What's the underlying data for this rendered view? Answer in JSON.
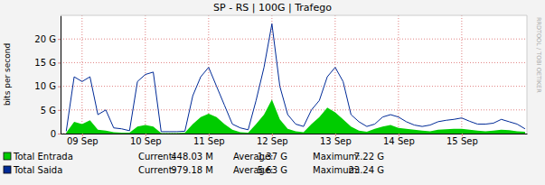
{
  "chart_data": {
    "type": "line",
    "title": "SP - RS | 100G | Trafego",
    "y_label": "bits per second",
    "annotations": [
      "RRDTOOL / TOBI OETIKER"
    ],
    "x": [
      8.75,
      8.875,
      9,
      9.125,
      9.25,
      9.375,
      9.5,
      9.625,
      9.75,
      9.875,
      10,
      10.125,
      10.25,
      10.375,
      10.5,
      10.625,
      10.75,
      10.875,
      11,
      11.125,
      11.25,
      11.375,
      11.5,
      11.625,
      11.75,
      11.875,
      12,
      12.125,
      12.25,
      12.375,
      12.5,
      12.625,
      12.75,
      12.875,
      13,
      13.125,
      13.25,
      13.375,
      13.5,
      13.625,
      13.75,
      13.875,
      14,
      14.125,
      14.25,
      14.375,
      14.5,
      14.625,
      14.75,
      14.875,
      15,
      15.125,
      15.25,
      15.375,
      15.5,
      15.625,
      15.75,
      15.875,
      16
    ],
    "xlim": [
      8.66,
      16.03
    ],
    "xticks": [
      {
        "value": 9,
        "label": "09 Sep"
      },
      {
        "value": 10,
        "label": "10 Sep"
      },
      {
        "value": 11,
        "label": "11 Sep"
      },
      {
        "value": 12,
        "label": "12 Sep"
      },
      {
        "value": 13,
        "label": "13 Sep"
      },
      {
        "value": 14,
        "label": "14 Sep"
      },
      {
        "value": 15,
        "label": "15 Sep"
      }
    ],
    "ylim": [
      0,
      25
    ],
    "yticks": [
      0,
      {
        "value": 5,
        "label": "5 G"
      },
      {
        "value": 10,
        "label": "10 G"
      },
      {
        "value": 15,
        "label": "15 G"
      },
      {
        "value": 20,
        "label": "20 G"
      }
    ],
    "grid": true,
    "legend": "bottom",
    "stat_labels": [
      "Current:",
      "Average:",
      "Maximum:"
    ],
    "series": [
      {
        "name": "Total Entrada",
        "type": "area",
        "color": "#00cc00",
        "current": "448.03 M",
        "average": "1.37 G",
        "maximum": "7.22 G",
        "values": [
          0.2,
          2.5,
          2,
          2.8,
          0.8,
          0.6,
          0.3,
          0.2,
          0.2,
          1.5,
          1.8,
          1.5,
          0.1,
          0.1,
          0.1,
          0.2,
          2,
          3.5,
          4.2,
          3.5,
          2,
          0.8,
          0.3,
          0.2,
          2,
          4,
          7.2,
          3,
          1,
          0.5,
          0.3,
          2,
          3.5,
          5.5,
          4.5,
          3,
          1.5,
          0.6,
          0.4,
          1,
          1.5,
          1.8,
          1.2,
          1,
          0.8,
          0.6,
          0.5,
          0.8,
          0.9,
          1,
          1,
          0.8,
          0.6,
          0.5,
          0.6,
          0.8,
          0.7,
          0.5,
          0.4
        ]
      },
      {
        "name": "Total Saida",
        "type": "line",
        "color": "#002a97",
        "current": "979.18 M",
        "average": "5.63 G",
        "maximum": "23.24 G",
        "values": [
          0.5,
          12,
          11,
          12,
          4,
          5,
          1.2,
          1,
          0.6,
          11,
          12.5,
          13,
          0.4,
          0.4,
          0.4,
          0.5,
          8,
          12,
          14,
          10,
          6,
          2,
          1.2,
          0.8,
          7,
          14,
          23.2,
          10,
          4,
          2,
          1.5,
          5,
          7,
          12,
          14,
          11,
          4,
          2.5,
          1.5,
          2,
          3.5,
          4,
          3.5,
          2.5,
          1.8,
          1.5,
          1.8,
          2.5,
          2.8,
          3,
          3.3,
          2.6,
          2,
          2,
          2.2,
          3,
          2.5,
          2,
          1
        ]
      }
    ]
  }
}
